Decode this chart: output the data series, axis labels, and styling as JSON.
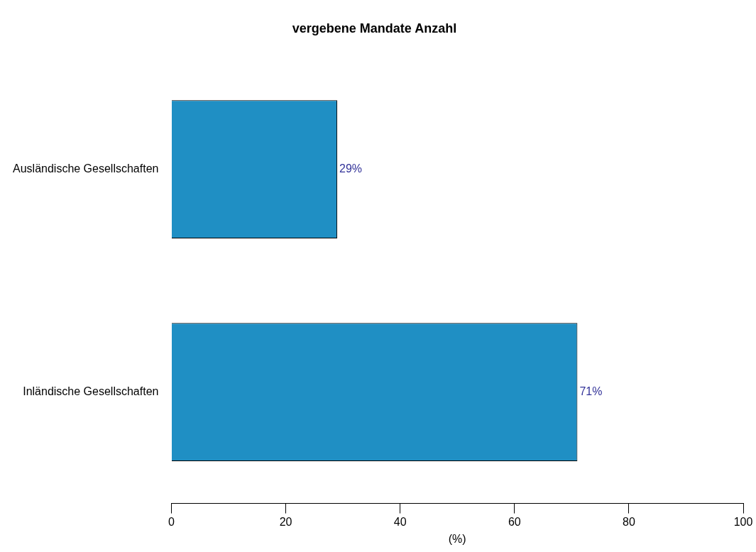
{
  "chart_data": {
    "type": "bar",
    "orientation": "horizontal",
    "title": "vergebene Mandate Anzahl",
    "xlabel": "(%)",
    "categories": [
      "Ausländische Gesellschaften",
      "Inländische Gesellschaften"
    ],
    "values": [
      29,
      71
    ],
    "value_labels": [
      "29%",
      "71%"
    ],
    "color": "#1f8fc4",
    "xlim": [
      0,
      100
    ],
    "xticks": [
      0,
      20,
      40,
      60,
      80,
      100
    ],
    "grid": false,
    "legend": false
  }
}
